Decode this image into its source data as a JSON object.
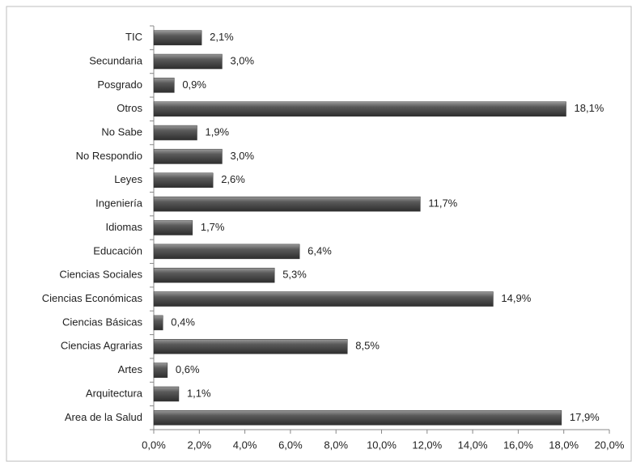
{
  "chart_data": {
    "type": "bar",
    "orientation": "horizontal",
    "categories": [
      "TIC",
      "Secundaria",
      "Posgrado",
      "Otros",
      "No Sabe",
      "No Respondio",
      "Leyes",
      "Ingeniería",
      "Idiomas",
      "Educación",
      "Ciencias Sociales",
      "Ciencias Económicas",
      "Ciencias Básicas",
      "Ciencias Agrarias",
      "Artes",
      "Arquitectura",
      "Area de la Salud"
    ],
    "values": [
      2.1,
      3.0,
      0.9,
      18.1,
      1.9,
      3.0,
      2.6,
      11.7,
      1.7,
      6.4,
      5.3,
      14.9,
      0.4,
      8.5,
      0.6,
      1.1,
      17.9
    ],
    "value_labels": [
      "2,1%",
      "3,0%",
      "0,9%",
      "18,1%",
      "1,9%",
      "3,0%",
      "2,6%",
      "11,7%",
      "1,7%",
      "6,4%",
      "5,3%",
      "14,9%",
      "0,4%",
      "8,5%",
      "0,6%",
      "1,1%",
      "17,9%"
    ],
    "color": "#555555",
    "xlim": [
      0,
      20
    ],
    "xticks": [
      {
        "value": 0,
        "label": "0,0%"
      },
      {
        "value": 2,
        "label": "2,0%"
      },
      {
        "value": 4,
        "label": "4,0%"
      },
      {
        "value": 6,
        "label": "6,0%"
      },
      {
        "value": 8,
        "label": "8,0%"
      },
      {
        "value": 10,
        "label": "10,0%"
      },
      {
        "value": 12,
        "label": "12,0%"
      },
      {
        "value": 14,
        "label": "14,0%"
      },
      {
        "value": 16,
        "label": "16,0%"
      },
      {
        "value": 18,
        "label": "18,0%"
      },
      {
        "value": 20,
        "label": "20,0%"
      }
    ],
    "grid": false
  }
}
